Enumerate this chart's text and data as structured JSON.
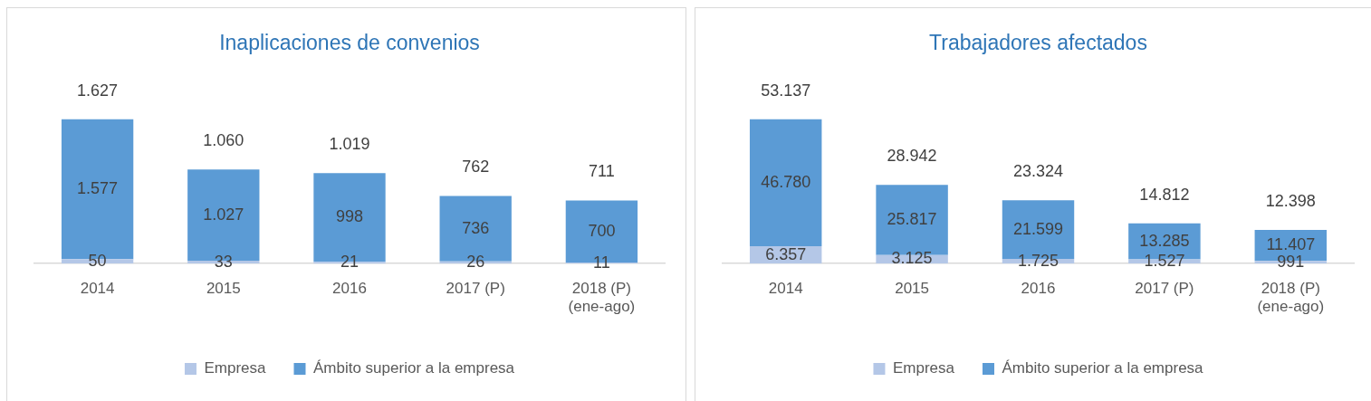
{
  "chart_data": [
    {
      "type": "bar",
      "title": "Inaplicaciones de convenios",
      "categories": [
        "2014",
        "2015",
        "2016",
        "2017 (P)",
        "2018 (P)\n(ene-ago)"
      ],
      "stacked": true,
      "legend": "bottom",
      "series": [
        {
          "name": "Empresa",
          "color": "#b4c7e7",
          "values": [
            50,
            33,
            21,
            26,
            11
          ],
          "value_labels": [
            "50",
            "33",
            "21",
            "26",
            "11"
          ]
        },
        {
          "name": "Ámbito superior a la empresa",
          "color": "#5b9bd5",
          "values": [
            1577,
            1027,
            998,
            736,
            700
          ],
          "value_labels": [
            "1.577",
            "1.027",
            "998",
            "736",
            "700"
          ]
        }
      ],
      "totals": [
        "1.627",
        "1.060",
        "1.019",
        "762",
        "711"
      ]
    },
    {
      "type": "bar",
      "title": "Trabajadores afectados",
      "categories": [
        "2014",
        "2015",
        "2016",
        "2017 (P)",
        "2018 (P)\n(ene-ago)"
      ],
      "stacked": true,
      "legend": "bottom",
      "series": [
        {
          "name": "Empresa",
          "color": "#b4c7e7",
          "values": [
            6357,
            3125,
            1725,
            1527,
            991
          ],
          "value_labels": [
            "6.357",
            "3.125",
            "1.725",
            "1.527",
            "991"
          ]
        },
        {
          "name": "Ámbito superior a la empresa",
          "color": "#5b9bd5",
          "values": [
            46780,
            25817,
            21599,
            13285,
            11407
          ],
          "value_labels": [
            "46.780",
            "25.817",
            "21.599",
            "13.285",
            "11.407"
          ]
        }
      ],
      "totals": [
        "53.137",
        "28.942",
        "23.324",
        "14.812",
        "12.398"
      ]
    }
  ]
}
